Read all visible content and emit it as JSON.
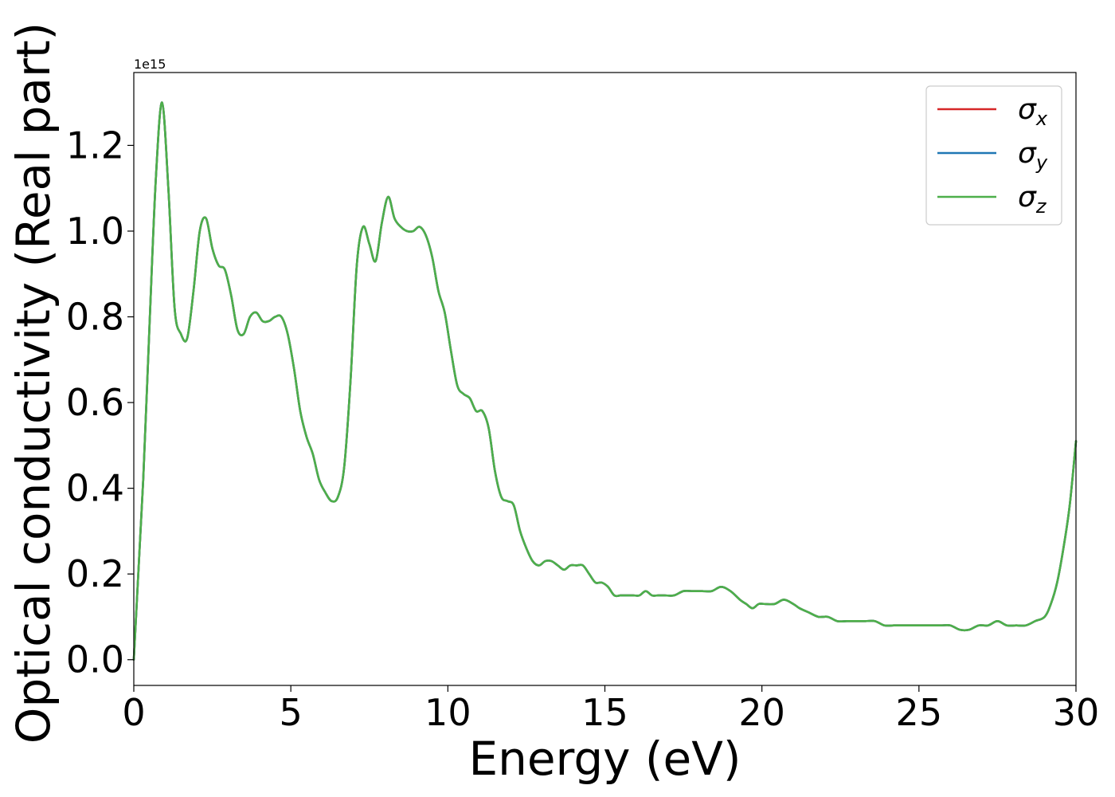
{
  "chart_data": {
    "type": "line",
    "xlabel": "Energy (eV)",
    "ylabel": "Optical conductivity (Real part)",
    "y_offset_label": "1e15",
    "xlim": [
      0,
      30
    ],
    "ylim": [
      -0.06,
      1.37
    ],
    "x_ticks": [
      0,
      5,
      10,
      15,
      20,
      25,
      30
    ],
    "x_tick_labels": [
      "0",
      "5",
      "10",
      "15",
      "20",
      "25",
      "30"
    ],
    "y_ticks": [
      0.0,
      0.2,
      0.4,
      0.6,
      0.8,
      1.0,
      1.2
    ],
    "y_tick_labels": [
      "0.0",
      "0.2",
      "0.4",
      "0.6",
      "0.8",
      "1.0",
      "1.2"
    ],
    "grid": false,
    "legend_position": "top-right",
    "series": [
      {
        "name": "σx",
        "symbol": "σ",
        "subscript": "x",
        "color": "#d62728"
      },
      {
        "name": "σy",
        "symbol": "σ",
        "subscript": "y",
        "color": "#1f77b4"
      },
      {
        "name": "σz",
        "symbol": "σ",
        "subscript": "z",
        "color": "#4daf4a"
      }
    ],
    "x": [
      0,
      0.1,
      0.3,
      0.5,
      0.7,
      0.9,
      1.1,
      1.3,
      1.5,
      1.7,
      1.9,
      2.1,
      2.3,
      2.5,
      2.7,
      2.9,
      3.1,
      3.3,
      3.5,
      3.7,
      3.9,
      4.1,
      4.3,
      4.5,
      4.7,
      4.9,
      5.1,
      5.3,
      5.5,
      5.7,
      5.9,
      6.1,
      6.3,
      6.5,
      6.7,
      6.9,
      7.1,
      7.3,
      7.5,
      7.7,
      7.9,
      8.1,
      8.3,
      8.5,
      8.7,
      8.9,
      9.1,
      9.3,
      9.5,
      9.7,
      9.9,
      10.1,
      10.3,
      10.5,
      10.7,
      10.9,
      11.1,
      11.3,
      11.5,
      11.7,
      11.9,
      12.1,
      12.3,
      12.5,
      12.7,
      12.9,
      13.1,
      13.3,
      13.5,
      13.7,
      13.9,
      14.1,
      14.3,
      14.5,
      14.7,
      14.9,
      15.1,
      15.3,
      15.5,
      15.7,
      15.9,
      16.1,
      16.3,
      16.5,
      16.7,
      16.9,
      17.2,
      17.5,
      17.8,
      18.1,
      18.4,
      18.7,
      19.0,
      19.3,
      19.5,
      19.7,
      19.9,
      20.1,
      20.4,
      20.7,
      21.0,
      21.2,
      21.5,
      21.8,
      22.1,
      22.4,
      22.7,
      23.0,
      23.3,
      23.6,
      23.9,
      24.2,
      24.5,
      24.8,
      25.1,
      25.4,
      25.7,
      26.0,
      26.3,
      26.6,
      26.9,
      27.2,
      27.5,
      27.8,
      28.1,
      28.4,
      28.7,
      29.0,
      29.2,
      29.4,
      29.6,
      29.8,
      30.0
    ],
    "y": [
      0.0,
      0.14,
      0.42,
      0.78,
      1.12,
      1.3,
      1.1,
      0.82,
      0.76,
      0.75,
      0.86,
      1.0,
      1.03,
      0.96,
      0.92,
      0.91,
      0.85,
      0.77,
      0.76,
      0.8,
      0.81,
      0.79,
      0.79,
      0.8,
      0.8,
      0.76,
      0.68,
      0.58,
      0.52,
      0.48,
      0.42,
      0.39,
      0.37,
      0.38,
      0.45,
      0.65,
      0.92,
      1.01,
      0.97,
      0.93,
      1.02,
      1.08,
      1.03,
      1.01,
      1.0,
      1.0,
      1.01,
      0.99,
      0.94,
      0.86,
      0.81,
      0.72,
      0.64,
      0.62,
      0.61,
      0.58,
      0.58,
      0.54,
      0.44,
      0.38,
      0.37,
      0.36,
      0.3,
      0.26,
      0.23,
      0.22,
      0.23,
      0.23,
      0.22,
      0.21,
      0.22,
      0.22,
      0.22,
      0.2,
      0.18,
      0.18,
      0.17,
      0.15,
      0.15,
      0.15,
      0.15,
      0.15,
      0.16,
      0.15,
      0.15,
      0.15,
      0.15,
      0.16,
      0.16,
      0.16,
      0.16,
      0.17,
      0.16,
      0.14,
      0.13,
      0.12,
      0.13,
      0.13,
      0.13,
      0.14,
      0.13,
      0.12,
      0.11,
      0.1,
      0.1,
      0.09,
      0.09,
      0.09,
      0.09,
      0.09,
      0.08,
      0.08,
      0.08,
      0.08,
      0.08,
      0.08,
      0.08,
      0.08,
      0.07,
      0.07,
      0.08,
      0.08,
      0.09,
      0.08,
      0.08,
      0.08,
      0.09,
      0.1,
      0.13,
      0.18,
      0.26,
      0.36,
      0.51
    ]
  }
}
